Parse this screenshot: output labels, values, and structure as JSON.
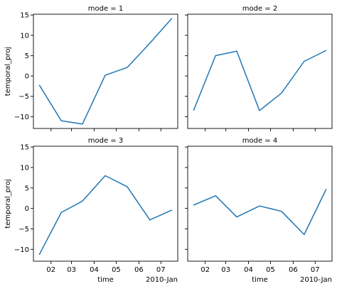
{
  "chart_data": {
    "type": "line",
    "layout": "2x2 facet grid, shared x and y axes",
    "grid": false,
    "line_color": "#1f77b4",
    "ylabel": "temporal_proj",
    "xlabel": "time",
    "x_offset_label": "2010-Jan",
    "x": [
      "2010-01-16",
      "2010-02-15",
      "2010-03-16",
      "2010-04-16",
      "2010-05-16",
      "2010-06-16",
      "2010-07-16"
    ],
    "x_ticks": [
      "2010-02-01",
      "2010-03-01",
      "2010-04-01",
      "2010-05-01",
      "2010-06-01",
      "2010-07-01"
    ],
    "x_tick_labels": [
      "02",
      "03",
      "04",
      "05",
      "06",
      "07"
    ],
    "xlim": [
      "2010-01-08",
      "2010-07-24"
    ],
    "y_ticks": [
      -10,
      -5,
      0,
      5,
      10,
      15
    ],
    "y_tick_labels": [
      "−10",
      "−5",
      "0",
      "5",
      "10",
      "15"
    ],
    "ylim": [
      -12.9,
      15.2
    ],
    "panels": [
      {
        "title": "mode = 1",
        "values": [
          -2.2,
          -11.0,
          -11.8,
          0.2,
          2.1,
          8.1,
          14.2
        ]
      },
      {
        "title": "mode = 2",
        "values": [
          -8.5,
          5.0,
          6.1,
          -8.5,
          -4.2,
          3.6,
          6.3
        ]
      },
      {
        "title": "mode = 3",
        "values": [
          -11.3,
          -1.0,
          1.8,
          8.0,
          5.3,
          -2.8,
          -0.4
        ]
      },
      {
        "title": "mode = 4",
        "values": [
          0.8,
          3.1,
          -2.1,
          0.6,
          -0.7,
          -6.4,
          4.7
        ]
      }
    ]
  }
}
